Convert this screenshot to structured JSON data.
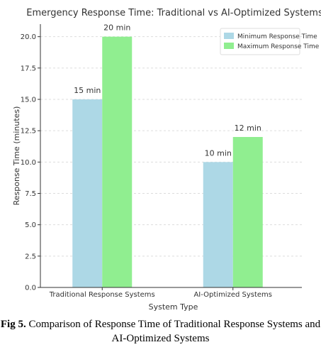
{
  "chart_data": {
    "type": "bar",
    "title": "Emergency Response Time: Traditional vs AI-Optimized Systems",
    "xlabel": "System Type",
    "ylabel": "Response Time (minutes)",
    "categories": [
      "Traditional Response Systems",
      "AI-Optimized Systems"
    ],
    "series": [
      {
        "name": "Minimum Response Time",
        "values": [
          15,
          10
        ],
        "labels": [
          "15 min",
          "10 min"
        ],
        "color": "#add8e6"
      },
      {
        "name": "Maximum Response Time",
        "values": [
          20,
          12
        ],
        "labels": [
          "20 min",
          "12 min"
        ],
        "color": "#90ee90"
      }
    ],
    "ylim": [
      0,
      21
    ],
    "yticks": [
      0.0,
      2.5,
      5.0,
      7.5,
      10.0,
      12.5,
      15.0,
      17.5,
      20.0
    ],
    "ytick_labels": [
      "0.0",
      "2.5",
      "5.0",
      "7.5",
      "10.0",
      "12.5",
      "15.0",
      "17.5",
      "20.0"
    ],
    "grid": true,
    "legend_position": "top-right"
  },
  "caption": {
    "label": "Fig 5.",
    "text": " Comparison of Response Time of Traditional Response Systems and AI-Optimized Systems"
  }
}
